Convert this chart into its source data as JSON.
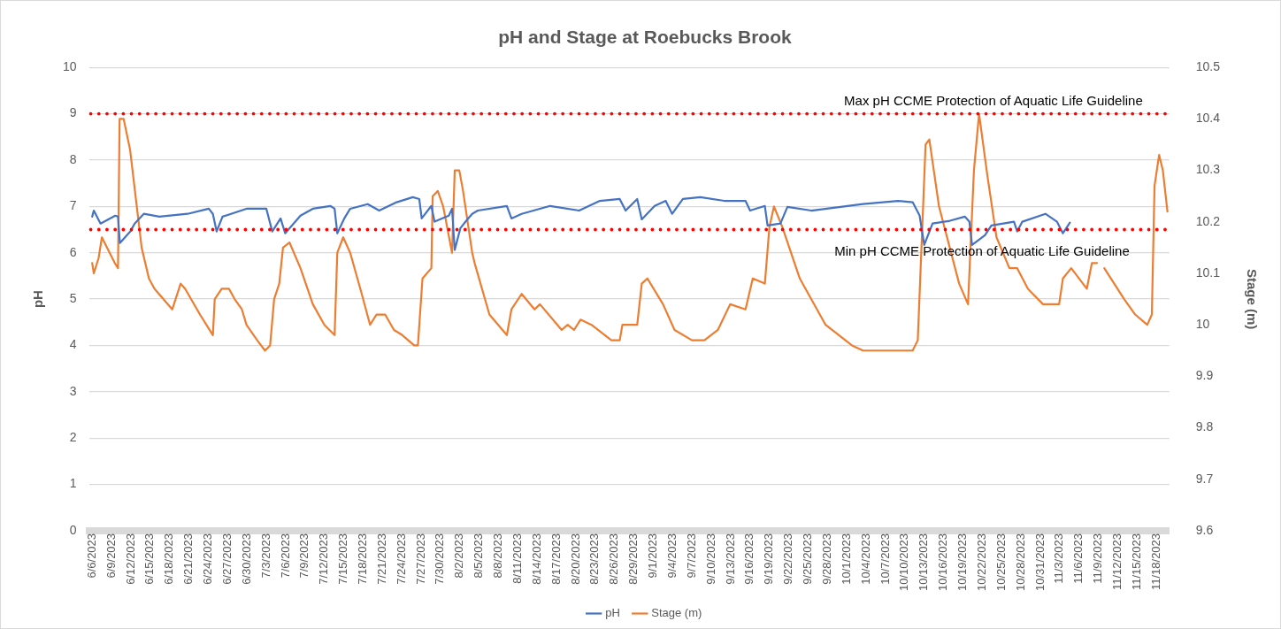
{
  "chart_data": {
    "type": "line",
    "title": "pH and Stage at Roebucks Brook",
    "ylabel": "pH",
    "y2label": "Stage (m)",
    "xlim": [
      "2023-06-05T12:00",
      "2023-11-20"
    ],
    "xticks": [
      {
        "value": "2023-06-06",
        "label": "6/6/2023"
      },
      {
        "value": "2023-06-09",
        "label": "6/9/2023"
      },
      {
        "value": "2023-06-12",
        "label": "6/12/2023"
      },
      {
        "value": "2023-06-15",
        "label": "6/15/2023"
      },
      {
        "value": "2023-06-18",
        "label": "6/18/2023"
      },
      {
        "value": "2023-06-21",
        "label": "6/21/2023"
      },
      {
        "value": "2023-06-24",
        "label": "6/24/2023"
      },
      {
        "value": "2023-06-27",
        "label": "6/27/2023"
      },
      {
        "value": "2023-06-30",
        "label": "6/30/2023"
      },
      {
        "value": "2023-07-03",
        "label": "7/3/2023"
      },
      {
        "value": "2023-07-06",
        "label": "7/6/2023"
      },
      {
        "value": "2023-07-09",
        "label": "7/9/2023"
      },
      {
        "value": "2023-07-12",
        "label": "7/12/2023"
      },
      {
        "value": "2023-07-15",
        "label": "7/15/2023"
      },
      {
        "value": "2023-07-18",
        "label": "7/18/2023"
      },
      {
        "value": "2023-07-21",
        "label": "7/21/2023"
      },
      {
        "value": "2023-07-24",
        "label": "7/24/2023"
      },
      {
        "value": "2023-07-27",
        "label": "7/27/2023"
      },
      {
        "value": "2023-07-30",
        "label": "7/30/2023"
      },
      {
        "value": "2023-08-02",
        "label": "8/2/2023"
      },
      {
        "value": "2023-08-05",
        "label": "8/5/2023"
      },
      {
        "value": "2023-08-08",
        "label": "8/8/2023"
      },
      {
        "value": "2023-08-11",
        "label": "8/11/2023"
      },
      {
        "value": "2023-08-14",
        "label": "8/14/2023"
      },
      {
        "value": "2023-08-17",
        "label": "8/17/2023"
      },
      {
        "value": "2023-08-20",
        "label": "8/20/2023"
      },
      {
        "value": "2023-08-23",
        "label": "8/23/2023"
      },
      {
        "value": "2023-08-26",
        "label": "8/26/2023"
      },
      {
        "value": "2023-08-29",
        "label": "8/29/2023"
      },
      {
        "value": "2023-09-01",
        "label": "9/1/2023"
      },
      {
        "value": "2023-09-04",
        "label": "9/4/2023"
      },
      {
        "value": "2023-09-07",
        "label": "9/7/2023"
      },
      {
        "value": "2023-09-10",
        "label": "9/10/2023"
      },
      {
        "value": "2023-09-13",
        "label": "9/13/2023"
      },
      {
        "value": "2023-09-16",
        "label": "9/16/2023"
      },
      {
        "value": "2023-09-19",
        "label": "9/19/2023"
      },
      {
        "value": "2023-09-22",
        "label": "9/22/2023"
      },
      {
        "value": "2023-09-25",
        "label": "9/25/2023"
      },
      {
        "value": "2023-09-28",
        "label": "9/28/2023"
      },
      {
        "value": "2023-10-01",
        "label": "10/1/2023"
      },
      {
        "value": "2023-10-04",
        "label": "10/4/2023"
      },
      {
        "value": "2023-10-07",
        "label": "10/7/2023"
      },
      {
        "value": "2023-10-10",
        "label": "10/10/2023"
      },
      {
        "value": "2023-10-13",
        "label": "10/13/2023"
      },
      {
        "value": "2023-10-16",
        "label": "10/16/2023"
      },
      {
        "value": "2023-10-19",
        "label": "10/19/2023"
      },
      {
        "value": "2023-10-22",
        "label": "10/22/2023"
      },
      {
        "value": "2023-10-25",
        "label": "10/25/2023"
      },
      {
        "value": "2023-10-28",
        "label": "10/28/2023"
      },
      {
        "value": "2023-10-31",
        "label": "10/31/2023"
      },
      {
        "value": "2023-11-03",
        "label": "11/3/2023"
      },
      {
        "value": "2023-11-06",
        "label": "11/6/2023"
      },
      {
        "value": "2023-11-09",
        "label": "11/9/2023"
      },
      {
        "value": "2023-11-12",
        "label": "11/12/2023"
      },
      {
        "value": "2023-11-15",
        "label": "11/15/2023"
      },
      {
        "value": "2023-11-18",
        "label": "11/18/2023"
      }
    ],
    "ylim": [
      0,
      10
    ],
    "yticks": [
      0,
      1,
      2,
      3,
      4,
      5,
      6,
      7,
      8,
      9,
      10
    ],
    "y2lim": [
      9.6,
      10.5
    ],
    "y2ticks": [
      9.6,
      9.7,
      9.8,
      9.9,
      10,
      10.1,
      10.2,
      10.3,
      10.4,
      10.5
    ],
    "grid": "y",
    "legend": "bottom",
    "marker": "none",
    "line_style": "solid",
    "ref_lines": [
      {
        "axis": "y",
        "value": 9,
        "label": "Max pH CCME Protection of Aquatic Life Guideline",
        "color": "#ff0000",
        "line_style": "dotted"
      },
      {
        "axis": "y",
        "value": 6.5,
        "label": "Min pH CCME Protection of Aquatic Life Guideline",
        "color": "#ff0000",
        "line_style": "dotted"
      }
    ],
    "series": [
      {
        "name": "pH",
        "color": "#4472c4",
        "x": [
          "2023-06-06",
          "2023-06-06T06:00",
          "2023-06-07T07:00",
          "2023-06-09T14:00",
          "2023-06-10",
          "2023-06-10T07:00",
          "2023-06-11T22:00",
          "2023-06-12T14:00",
          "2023-06-14",
          "2023-06-16T10:00",
          "2023-06-20T19:00",
          "2023-06-24T02:00",
          "2023-06-24T17:00",
          "2023-06-25T07:00",
          "2023-06-26T05:00",
          "2023-06-29T22:00",
          "2023-07-03",
          "2023-07-03T22:00",
          "2023-07-05T05:00",
          "2023-07-05T22:00",
          "2023-07-08T07:00",
          "2023-07-10T05:00",
          "2023-07-12T22:00",
          "2023-07-13T14:00",
          "2023-07-14",
          "2023-07-15T02:00",
          "2023-07-16",
          "2023-07-18T17:00",
          "2023-07-20T12:00",
          "2023-07-23T05:00",
          "2023-07-25T17:00",
          "2023-07-26T17:00",
          "2023-07-27T02:00",
          "2023-07-28T14:00",
          "2023-07-29T02:00",
          "2023-07-31T07:00",
          "2023-07-31T19:00",
          "2023-08-01T05:00",
          "2023-08-02T02:00",
          "2023-08-03",
          "2023-08-03T22:00",
          "2023-08-04T19:00",
          "2023-08-09T07:00",
          "2023-08-10",
          "2023-08-11T14:00",
          "2023-08-16",
          "2023-08-20T12:00",
          "2023-08-23T17:00",
          "2023-08-26T19:00",
          "2023-08-27T17:00",
          "2023-08-29T12:00",
          "2023-08-30T05:00",
          "2023-09-01T05:00",
          "2023-09-02T22:00",
          "2023-09-03T22:00",
          "2023-09-05T14:00",
          "2023-09-08T07:00",
          "2023-09-12",
          "2023-09-15T07:00",
          "2023-09-16",
          "2023-09-18T07:00",
          "2023-09-18T17:00",
          "2023-09-20T17:00",
          "2023-09-21T19:00",
          "2023-09-25T12:00",
          "2023-10-03T12:00",
          "2023-10-08T22:00",
          "2023-10-11T05:00",
          "2023-10-12T07:00",
          "2023-10-13",
          "2023-10-14T07:00",
          "2023-10-17",
          "2023-10-19T07:00",
          "2023-10-20",
          "2023-10-20T10:00",
          "2023-10-22T10:00",
          "2023-10-23T10:00",
          "2023-10-26T22:00",
          "2023-10-27T10:00",
          "2023-10-28T05:00",
          "2023-10-31T19:00",
          "2023-11-02T14:00",
          "2023-11-03T12:00",
          "2023-11-04T14:00"
        ],
        "values": [
          6.78,
          6.91,
          6.63,
          6.8,
          6.78,
          6.21,
          6.46,
          6.63,
          6.84,
          6.78,
          6.84,
          6.95,
          6.84,
          6.46,
          6.78,
          6.95,
          6.95,
          6.46,
          6.74,
          6.42,
          6.8,
          6.95,
          7.01,
          6.95,
          6.42,
          6.74,
          6.95,
          7.05,
          6.91,
          7.09,
          7.2,
          7.16,
          6.74,
          7.01,
          6.67,
          6.8,
          6.95,
          6.06,
          6.53,
          6.69,
          6.84,
          6.91,
          7.01,
          6.74,
          6.84,
          7.01,
          6.91,
          7.12,
          7.16,
          6.91,
          7.16,
          6.72,
          7.01,
          7.12,
          6.84,
          7.16,
          7.2,
          7.12,
          7.12,
          6.91,
          7.01,
          6.59,
          6.63,
          6.99,
          6.91,
          7.05,
          7.12,
          7.09,
          6.8,
          6.17,
          6.63,
          6.69,
          6.78,
          6.67,
          6.17,
          6.38,
          6.59,
          6.67,
          6.46,
          6.67,
          6.84,
          6.67,
          6.42,
          6.65
        ]
      },
      {
        "name": "Stage (m)",
        "color": "#ed7d31",
        "axis": "y2",
        "x": [
          "2023-06-06",
          "2023-06-06T06:00",
          "2023-06-07",
          "2023-06-07T12:00",
          "2023-06-09T12:00",
          "2023-06-10",
          "2023-06-10T06:00",
          "2023-06-10T21:00",
          "2023-06-11T21:00",
          "2023-06-13T16:00",
          "2023-06-14T19:00",
          "2023-06-15T16:00",
          "2023-06-18T10:00",
          "2023-06-19T17:00",
          "2023-06-20T10:00",
          "2023-06-22T17:00",
          "2023-06-24T17:00",
          "2023-06-25",
          "2023-06-26T02:00",
          "2023-06-27T05:00",
          "2023-06-28T02:00",
          "2023-06-29T05:00",
          "2023-06-29T22:00",
          "2023-07-01T14:00",
          "2023-07-02T19:00",
          "2023-07-03T14:00",
          "2023-07-04T05:00",
          "2023-07-05",
          "2023-07-05T14:00",
          "2023-07-06T14:00",
          "2023-07-08T07:00",
          "2023-07-10T05:00",
          "2023-07-12",
          "2023-07-13T14:00",
          "2023-07-14",
          "2023-07-14T22:00",
          "2023-07-16",
          "2023-07-17T19:00",
          "2023-07-19T02:00",
          "2023-07-20T02:00",
          "2023-07-21T10:00",
          "2023-07-22T19:00",
          "2023-07-24T02:00",
          "2023-07-25T22:00",
          "2023-07-26T12:00",
          "2023-07-27T05:00",
          "2023-07-28T14:00",
          "2023-07-28T19:00",
          "2023-07-29T14:00",
          "2023-07-30T10:00",
          "2023-07-31T19:00",
          "2023-08-01T05:00",
          "2023-08-01T22:00",
          "2023-08-02T12:00",
          "2023-08-03T22:00",
          "2023-08-04T07:00",
          "2023-08-06T14:00",
          "2023-08-09T07:00",
          "2023-08-10",
          "2023-08-11T14:00",
          "2023-08-13T14:00",
          "2023-08-14T10:00",
          "2023-08-17T19:00",
          "2023-08-18T17:00",
          "2023-08-19T17:00",
          "2023-08-20T17:00",
          "2023-08-22T10:00",
          "2023-08-25T12:00",
          "2023-08-26T19:00",
          "2023-08-27T05:00",
          "2023-08-29T12:00",
          "2023-08-30T05:00",
          "2023-08-31T02:00",
          "2023-09-02T12:00",
          "2023-09-04T07:00",
          "2023-09-07",
          "2023-09-08T22:00",
          "2023-09-11",
          "2023-09-12T22:00",
          "2023-09-15T07:00",
          "2023-09-16T10:00",
          "2023-09-18T07:00",
          "2023-09-19",
          "2023-09-19T17:00",
          "2023-09-21",
          "2023-09-23T17:00",
          "2023-09-27T17:00",
          "2023-10-01T19:00",
          "2023-10-03T12:00",
          "2023-10-06T14:00",
          "2023-10-11T05:00",
          "2023-10-12",
          "2023-10-13T05:00",
          "2023-10-13T19:00",
          "2023-10-15T07:00",
          "2023-10-18T10:00",
          "2023-10-19T19:00",
          "2023-10-20T17:00",
          "2023-10-21T12:00",
          "2023-10-22T19:00",
          "2023-10-24T05:00",
          "2023-10-26T05:00",
          "2023-10-27T10:00",
          "2023-10-29T02:00",
          "2023-10-31T10:00",
          "2023-11-02T22:00",
          "2023-11-03T12:00",
          "2023-11-04T19:00",
          "2023-11-07T05:00",
          "2023-11-08",
          "2023-11-08T19:00",
          "2023-11-09",
          "2023-11-09T22:00",
          "2023-11-13",
          "2023-11-14T17:00",
          "2023-11-16T14:00",
          "2023-11-17T07:00",
          "2023-11-17T17:00",
          "2023-11-18T10:00",
          "2023-11-19",
          "2023-11-19T17:00"
        ],
        "values": [
          10.12,
          10.1,
          10.13,
          10.17,
          10.12,
          10.11,
          10.4,
          10.4,
          10.34,
          10.15,
          10.09,
          10.07,
          10.03,
          10.08,
          10.07,
          10.02,
          9.98,
          10.05,
          10.07,
          10.07,
          10.05,
          10.03,
          10,
          9.97,
          9.95,
          9.96,
          10.05,
          10.08,
          10.15,
          10.16,
          10.11,
          10.04,
          10,
          9.98,
          10.14,
          10.17,
          10.14,
          10.06,
          10,
          10.02,
          10.02,
          9.99,
          9.98,
          9.96,
          9.96,
          10.09,
          10.11,
          10.25,
          10.26,
          10.23,
          10.14,
          10.3,
          10.3,
          10.26,
          10.14,
          10.12,
          10.02,
          9.98,
          10.03,
          10.06,
          10.03,
          10.04,
          9.99,
          10,
          9.99,
          10.01,
          10,
          9.97,
          9.97,
          10,
          10,
          10.08,
          10.09,
          10.04,
          9.99,
          9.97,
          9.97,
          9.99,
          10.04,
          10.03,
          10.09,
          10.08,
          10.19,
          10.23,
          10.19,
          10.09,
          10,
          9.96,
          9.95,
          9.95,
          9.95,
          9.97,
          10.35,
          10.36,
          10.23,
          10.08,
          10.04,
          10.3,
          10.41,
          10.29,
          10.17,
          10.11,
          10.11,
          10.07,
          10.04,
          10.04,
          10.09,
          10.11,
          10.07,
          10.12,
          10.12,
          null,
          10.11,
          10.05,
          10.02,
          10,
          10.02,
          10.27,
          10.33,
          10.3,
          10.22
        ]
      }
    ]
  }
}
